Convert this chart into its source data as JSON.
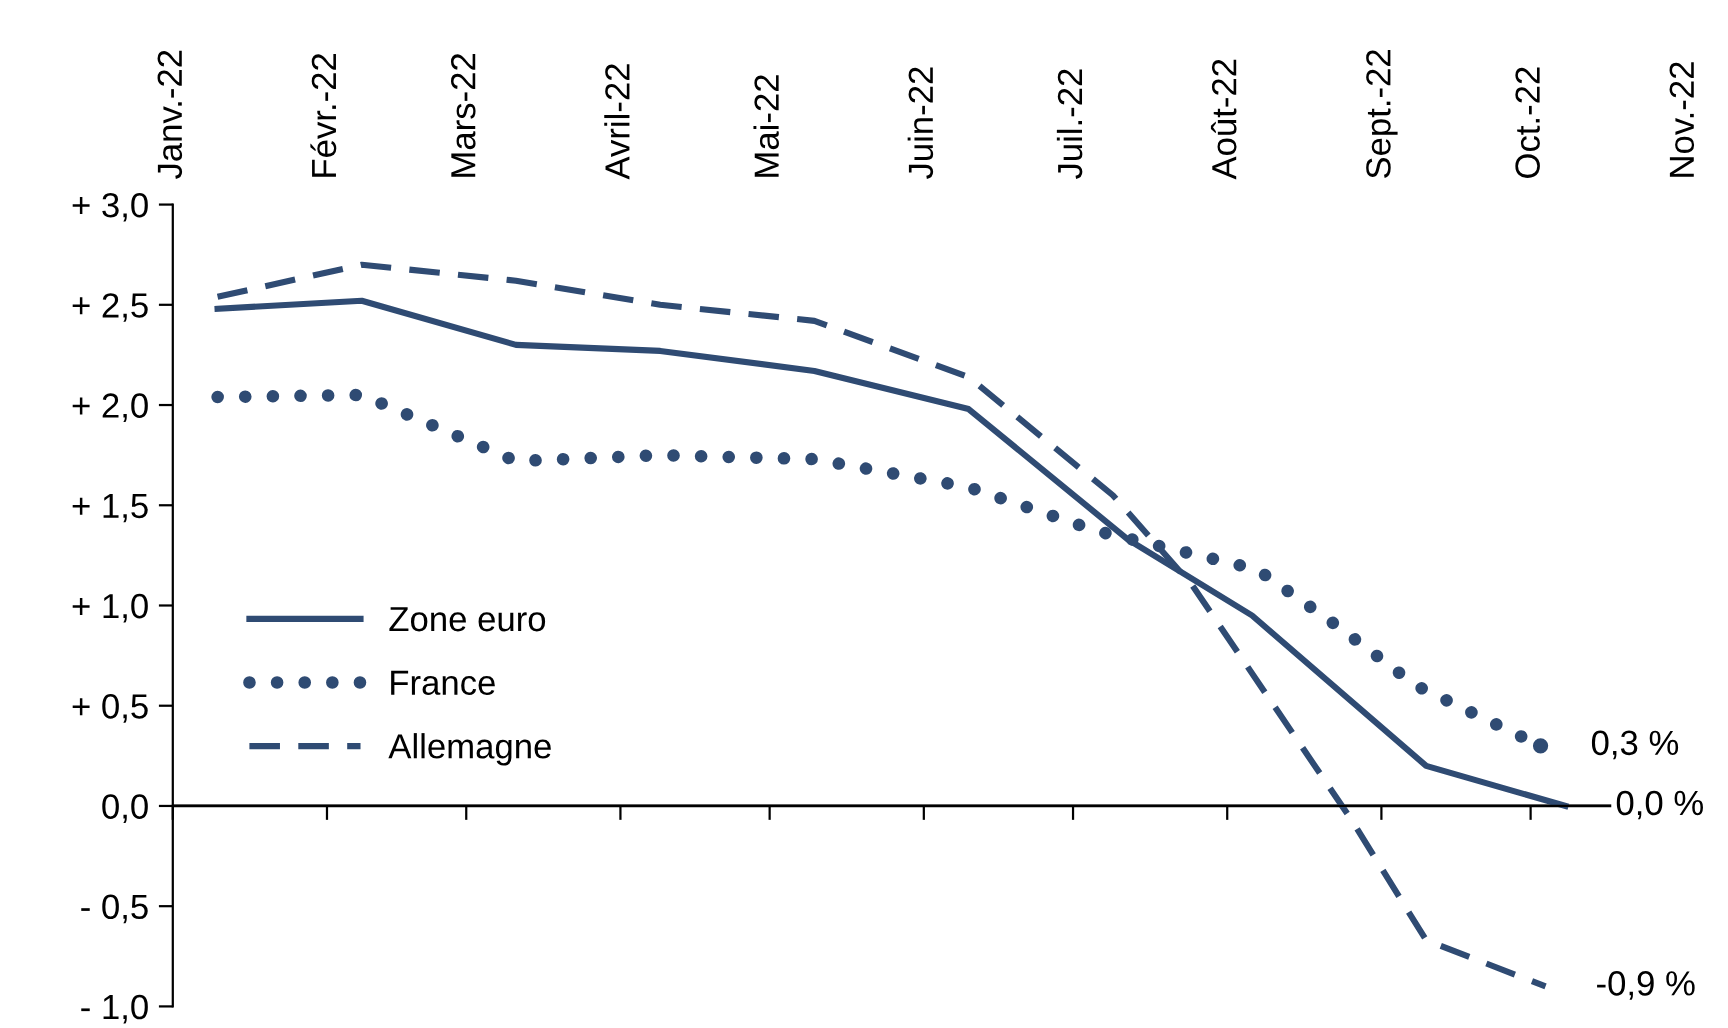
{
  "chart_data": {
    "type": "line",
    "xlim": [
      "2022-01-01",
      "2022-11-01"
    ],
    "xticks": [
      {
        "value": "2022-01-01",
        "label": "Janv.-22"
      },
      {
        "value": "2022-02-01",
        "label": "Févr.-22"
      },
      {
        "value": "2022-03-01",
        "label": "Mars-22"
      },
      {
        "value": "2022-04-01",
        "label": "Avril-22"
      },
      {
        "value": "2022-05-01",
        "label": "Mai-22"
      },
      {
        "value": "2022-06-01",
        "label": "Juin-22"
      },
      {
        "value": "2022-07-01",
        "label": "Juil.-22"
      },
      {
        "value": "2022-08-01",
        "label": "Août-22"
      },
      {
        "value": "2022-09-01",
        "label": "Sept.-22"
      },
      {
        "value": "2022-10-01",
        "label": "Oct.-22"
      },
      {
        "value": "2022-11-01",
        "label": "Nov.-22"
      }
    ],
    "ylim": [
      -1,
      3
    ],
    "yticks": [
      {
        "value": -1,
        "label": "- 1,0"
      },
      {
        "value": -0.5,
        "label": "- 0,5"
      },
      {
        "value": 0,
        "label": "0,0"
      },
      {
        "value": 0.5,
        "label": "+ 0,5"
      },
      {
        "value": 1,
        "label": "+ 1,0"
      },
      {
        "value": 1.5,
        "label": "+ 1,5"
      },
      {
        "value": 2,
        "label": "+ 2,0"
      },
      {
        "value": 2.5,
        "label": "+ 2,5"
      },
      {
        "value": 3,
        "label": "+ 3,0"
      }
    ],
    "grid": false,
    "ref_lines": [
      {
        "axis": "y",
        "value": 0,
        "color": "#000000",
        "line_style": "solid"
      }
    ],
    "legend": "left",
    "series": [
      {
        "name": "Zone euro",
        "color": "#2f4b73",
        "line_style": "solid",
        "x": [
          "2022-01-10",
          "2022-02-08",
          "2022-03-11",
          "2022-04-09",
          "2022-05-10",
          "2022-06-10",
          "2022-07-12",
          "2022-08-06",
          "2022-09-10",
          "2022-10-08"
        ],
        "values": [
          2.48,
          2.52,
          2.3,
          2.27,
          2.17,
          1.98,
          1.33,
          0.95,
          0.2,
          0.0
        ]
      },
      {
        "name": "France",
        "color": "#2f4b73",
        "line_style": "dotted",
        "x": [
          "2022-01-10",
          "2022-02-08",
          "2022-03-11",
          "2022-04-09",
          "2022-05-10",
          "2022-06-10",
          "2022-07-06",
          "2022-08-07",
          "2022-08-23",
          "2022-09-08",
          "2022-10-03"
        ],
        "values": [
          2.04,
          2.05,
          1.72,
          1.75,
          1.73,
          1.59,
          1.37,
          1.18,
          0.9,
          0.6,
          0.3
        ]
      },
      {
        "name": "Allemagne",
        "color": "#2f4b73",
        "line_style": "dashed",
        "x": [
          "2022-01-10",
          "2022-02-08",
          "2022-03-11",
          "2022-04-09",
          "2022-05-10",
          "2022-06-10",
          "2022-07-09",
          "2022-07-25",
          "2022-08-26",
          "2022-09-10",
          "2022-10-04"
        ],
        "values": [
          2.54,
          2.7,
          2.62,
          2.5,
          2.42,
          2.14,
          1.55,
          1.1,
          -0.07,
          -0.67,
          -0.9
        ]
      }
    ],
    "annotations": [
      {
        "text": "0,3 %",
        "x": "2022-10-03",
        "y": 0.3
      },
      {
        "text": "0,0 %",
        "x": "2022-10-08",
        "y": 0.0
      },
      {
        "text": "-0,9 %",
        "x": "2022-10-04",
        "y": -0.9
      }
    ]
  }
}
